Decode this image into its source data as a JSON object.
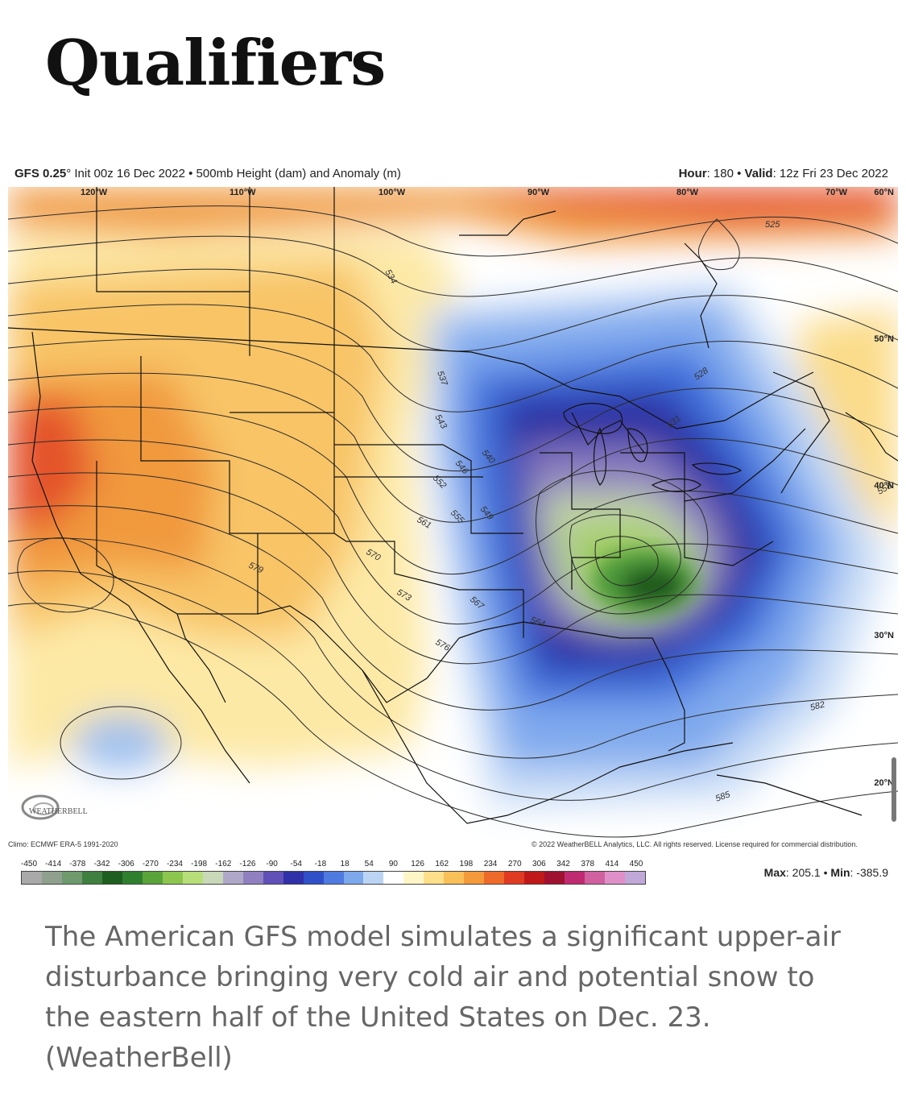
{
  "heading": "Qualifiers",
  "figure": {
    "header_model": "GFS 0.25",
    "header_degree": "°",
    "header_rest": " Init 00z 16 Dec 2022 • 500mb Height (dam) and Anomaly (m)",
    "hour_label": "Hour",
    "hour_value": ": 180 • ",
    "valid_label": "Valid",
    "valid_value": ": 12z Fri 23 Dec 2022",
    "longitudes": [
      "120°W",
      "110°W",
      "100°W",
      "90°W",
      "80°W",
      "70°W"
    ],
    "latitudes": [
      "60°N",
      "50°N",
      "40°N",
      "30°N",
      "20°N"
    ],
    "contour_labels": [
      "525",
      "528",
      "531",
      "534",
      "537",
      "540",
      "543",
      "546",
      "549",
      "552",
      "555",
      "558",
      "561",
      "564",
      "567",
      "570",
      "573",
      "576",
      "579",
      "582",
      "585"
    ],
    "logo_text": "WEATHERBELL",
    "climo": "Climo: ECMWF ERA-5 1991-2020",
    "copyright": "© 2022 WeatherBELL Analytics, LLC. All rights reserved. License required for commercial distribution.",
    "scale_values": [
      "-450",
      "-414",
      "-378",
      "-342",
      "-306",
      "-270",
      "-234",
      "-198",
      "-162",
      "-126",
      "-90",
      "-54",
      "-18",
      "18",
      "54",
      "90",
      "126",
      "162",
      "198",
      "234",
      "270",
      "306",
      "342",
      "378",
      "414",
      "450"
    ],
    "scale_colors": [
      "#a9a9a9",
      "#8fa08f",
      "#6e9a6e",
      "#3f7f3f",
      "#1e5e1e",
      "#2f7f2f",
      "#5aa23a",
      "#8cc64f",
      "#b8de7a",
      "#c8d8b8",
      "#b0a8c8",
      "#9080c0",
      "#6050b8",
      "#3030a8",
      "#2f50c8",
      "#4f7ae0",
      "#7ea8ec",
      "#bcd4f4",
      "#ffffff",
      "#fff6c8",
      "#ffe08a",
      "#f9c05a",
      "#f49a3a",
      "#ee6a2a",
      "#e03a22",
      "#c01818",
      "#a01030",
      "#c02a70",
      "#d060a0",
      "#e090c8",
      "#c0a8d8"
    ],
    "max_label": "Max",
    "max_value": ": 205.1 • ",
    "min_label": "Min",
    "min_value": ": -385.9"
  },
  "caption": "The American GFS model simulates a significant upper-air disturbance bringing very cold air and potential snow to the eastern half of the United States on Dec. 23. (WeatherBell)"
}
